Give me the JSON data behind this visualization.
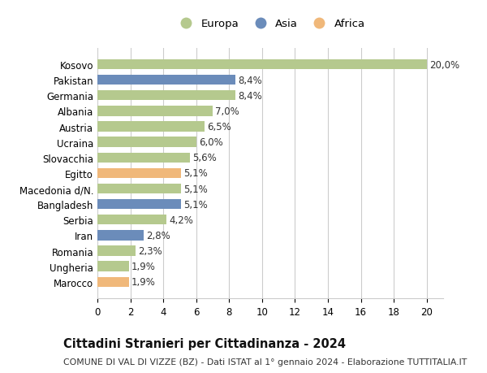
{
  "categories": [
    "Marocco",
    "Ungheria",
    "Romania",
    "Iran",
    "Serbia",
    "Bangladesh",
    "Macedonia d/N.",
    "Egitto",
    "Slovacchia",
    "Ucraina",
    "Austria",
    "Albania",
    "Germania",
    "Pakistan",
    "Kosovo"
  ],
  "values": [
    1.9,
    1.9,
    2.3,
    2.8,
    4.2,
    5.1,
    5.1,
    5.1,
    5.6,
    6.0,
    6.5,
    7.0,
    8.4,
    8.4,
    20.0
  ],
  "labels": [
    "1,9%",
    "1,9%",
    "2,3%",
    "2,8%",
    "4,2%",
    "5,1%",
    "5,1%",
    "5,1%",
    "5,6%",
    "6,0%",
    "6,5%",
    "7,0%",
    "8,4%",
    "8,4%",
    "20,0%"
  ],
  "continents": [
    "Africa",
    "Europa",
    "Europa",
    "Asia",
    "Europa",
    "Asia",
    "Europa",
    "Africa",
    "Europa",
    "Europa",
    "Europa",
    "Europa",
    "Europa",
    "Asia",
    "Europa"
  ],
  "colors": {
    "Europa": "#b5c98e",
    "Asia": "#6b8cba",
    "Africa": "#f0b87a"
  },
  "legend_entries": [
    "Europa",
    "Asia",
    "Africa"
  ],
  "title": "Cittadini Stranieri per Cittadinanza - 2024",
  "subtitle": "COMUNE DI VAL DI VIZZE (BZ) - Dati ISTAT al 1° gennaio 2024 - Elaborazione TUTTITALIA.IT",
  "xlim": [
    0,
    21
  ],
  "xticks": [
    0,
    2,
    4,
    6,
    8,
    10,
    12,
    14,
    16,
    18,
    20
  ],
  "background_color": "#ffffff",
  "grid_color": "#cccccc",
  "bar_height": 0.65,
  "label_fontsize": 8.5,
  "title_fontsize": 10.5,
  "subtitle_fontsize": 7.8,
  "tick_fontsize": 8.5
}
